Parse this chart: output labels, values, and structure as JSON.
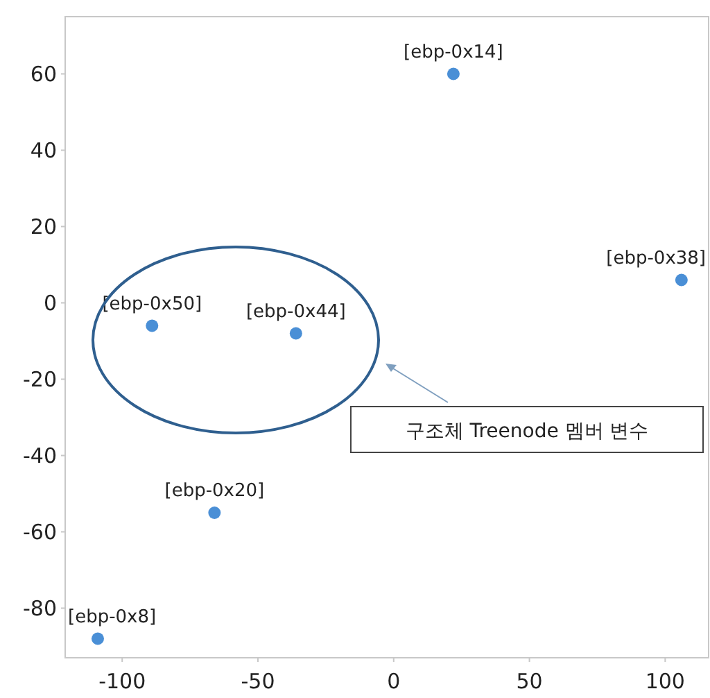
{
  "chart_data": {
    "type": "scatter",
    "x": [
      22,
      106,
      -89,
      -36,
      -66,
      -109
    ],
    "series": [
      {
        "color": "#4a8fd6",
        "values": [
          60,
          6,
          -6,
          -8,
          -55,
          -88
        ]
      }
    ],
    "xlim": [
      -121,
      116
    ],
    "ylim": [
      -93,
      75
    ],
    "xticks": [
      -100,
      -50,
      0,
      50,
      100
    ],
    "yticks": [
      -80,
      -60,
      -40,
      -20,
      0,
      20,
      40,
      60
    ],
    "grid": false,
    "marker": "circle",
    "annotations": [
      {
        "text": "[ebp-0x14]",
        "x": 22,
        "y": 60
      },
      {
        "text": "[ebp-0x38]",
        "x": 106,
        "y": 6
      },
      {
        "text": "[ebp-0x50]",
        "x": -89,
        "y": -6
      },
      {
        "text": "[ebp-0x44]",
        "x": -36,
        "y": -8
      },
      {
        "text": "[ebp-0x20]",
        "x": -66,
        "y": -55
      },
      {
        "text": "[ebp-0x8]",
        "x": -109,
        "y": -88
      },
      "구조체 Treenode 멤버 변수"
    ]
  }
}
